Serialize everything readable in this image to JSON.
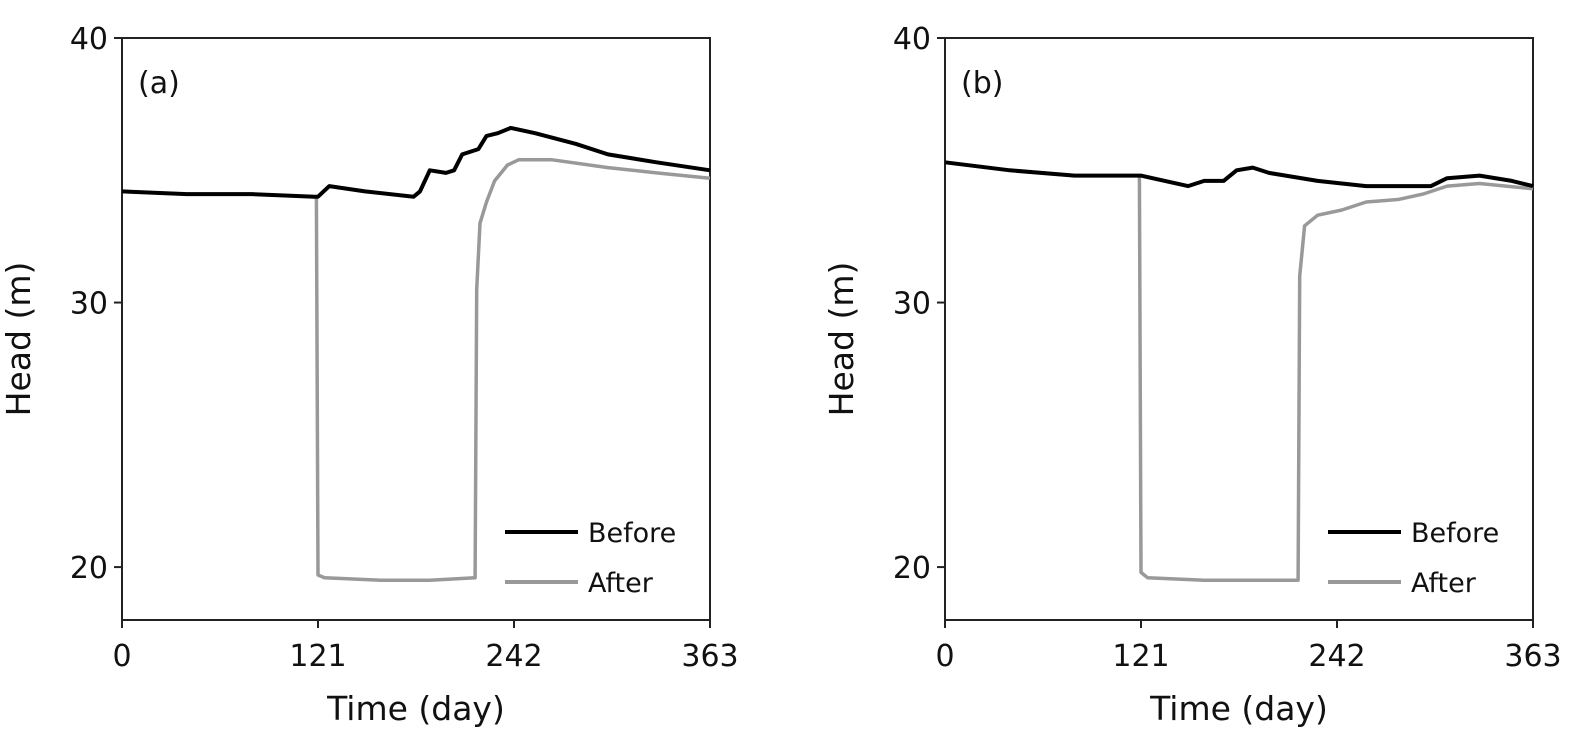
{
  "chart_data": [
    {
      "type": "line",
      "panel_label": "(a)",
      "xlabel": "Time (day)",
      "ylabel": "Head (m)",
      "xlim": [
        0,
        363
      ],
      "ylim": [
        18,
        40
      ],
      "xticks": [
        "0",
        "121",
        "242",
        "363"
      ],
      "yticks": [
        "20",
        "30",
        "40"
      ],
      "grid": false,
      "legend_position": "bottom-right",
      "series": [
        {
          "name": "Before",
          "color": "#000000",
          "x": [
            0,
            40,
            80,
            119,
            121,
            128,
            150,
            180,
            184,
            190,
            200,
            205,
            210,
            220,
            225,
            232,
            240,
            255,
            280,
            300,
            330,
            363
          ],
          "y": [
            34.2,
            34.1,
            34.1,
            34.0,
            34.0,
            34.4,
            34.2,
            34.0,
            34.2,
            35.0,
            34.9,
            35.0,
            35.6,
            35.8,
            36.3,
            36.4,
            36.6,
            36.4,
            36.0,
            35.6,
            35.3,
            35.0
          ]
        },
        {
          "name": "After",
          "color": "#999999",
          "x": [
            0,
            40,
            80,
            119,
            120,
            121,
            125,
            160,
            190,
            218,
            219,
            221,
            225,
            230,
            238,
            245,
            265,
            300,
            330,
            363
          ],
          "y": [
            34.2,
            34.1,
            34.1,
            34.0,
            34.0,
            19.7,
            19.6,
            19.5,
            19.5,
            19.6,
            30.5,
            33.0,
            33.8,
            34.6,
            35.2,
            35.4,
            35.4,
            35.1,
            34.9,
            34.7
          ]
        }
      ]
    },
    {
      "type": "line",
      "panel_label": "(b)",
      "xlabel": "Time (day)",
      "ylabel": "Head (m)",
      "xlim": [
        0,
        363
      ],
      "ylim": [
        18,
        40
      ],
      "xticks": [
        "0",
        "121",
        "242",
        "363"
      ],
      "yticks": [
        "20",
        "30",
        "40"
      ],
      "grid": false,
      "legend_position": "bottom-right",
      "series": [
        {
          "name": "Before",
          "color": "#000000",
          "x": [
            0,
            40,
            80,
            121,
            150,
            160,
            172,
            180,
            190,
            200,
            230,
            260,
            280,
            300,
            310,
            330,
            350,
            363
          ],
          "y": [
            35.3,
            35.0,
            34.8,
            34.8,
            34.4,
            34.6,
            34.6,
            35.0,
            35.1,
            34.9,
            34.6,
            34.4,
            34.4,
            34.4,
            34.7,
            34.8,
            34.6,
            34.4
          ]
        },
        {
          "name": "After",
          "color": "#999999",
          "x": [
            0,
            40,
            80,
            120,
            121,
            125,
            160,
            190,
            218,
            219,
            222,
            230,
            245,
            260,
            280,
            295,
            310,
            330,
            363
          ],
          "y": [
            35.3,
            35.0,
            34.8,
            34.8,
            19.8,
            19.6,
            19.5,
            19.5,
            19.5,
            31.0,
            32.9,
            33.3,
            33.5,
            33.8,
            33.9,
            34.1,
            34.4,
            34.5,
            34.3
          ]
        }
      ]
    }
  ]
}
